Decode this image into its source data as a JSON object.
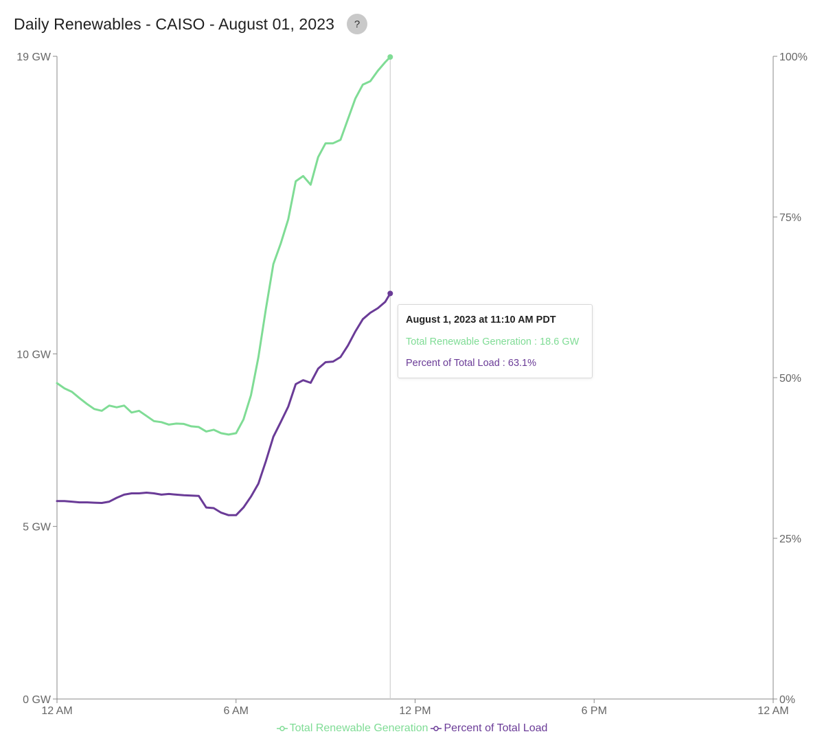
{
  "header": {
    "title": "Daily Renewables - CAISO - August 01, 2023",
    "help_label": "?"
  },
  "colors": {
    "renewable": "#7fdc95",
    "percent": "#6a3b97",
    "axis": "#888888",
    "crosshair": "#cfcfcf"
  },
  "tooltip": {
    "title": "August 1, 2023 at 11:10 AM PDT",
    "renewable_label": "Total Renewable Generation",
    "renewable_sep": " : ",
    "renewable_value": "18.6 GW",
    "percent_label": "Percent of Total Load",
    "percent_sep": " : ",
    "percent_value": "63.1%"
  },
  "legend": [
    {
      "label": "Total Renewable Generation",
      "series": "renewable"
    },
    {
      "label": "Percent of Total Load",
      "series": "percent"
    }
  ],
  "chart_data": {
    "type": "line",
    "title": "Daily Renewables - CAISO - August 01, 2023",
    "x_unit": "hours since 12 AM",
    "xlim": [
      0,
      24
    ],
    "x_ticks": [
      {
        "value": 0,
        "label": "12 AM"
      },
      {
        "value": 6,
        "label": "6 AM"
      },
      {
        "value": 12,
        "label": "12 PM"
      },
      {
        "value": 18,
        "label": "6 PM"
      },
      {
        "value": 24,
        "label": "12 AM"
      }
    ],
    "y_left": {
      "unit": "GW",
      "lim": [
        0,
        18.62
      ],
      "ticks": [
        {
          "value": 0,
          "label": "0 GW"
        },
        {
          "value": 5,
          "label": "5 GW"
        },
        {
          "value": 10,
          "label": "10 GW"
        },
        {
          "value": 18.62,
          "label": "19 GW"
        }
      ]
    },
    "y_right": {
      "unit": "%",
      "lim": [
        0,
        100
      ],
      "ticks": [
        {
          "value": 0,
          "label": "0%"
        },
        {
          "value": 25,
          "label": "25%"
        },
        {
          "value": 50,
          "label": "50%"
        },
        {
          "value": 75,
          "label": "75%"
        },
        {
          "value": 100,
          "label": "100%"
        }
      ]
    },
    "cursor_x": 11.1667,
    "grid": false,
    "legend_position": "bottom-center",
    "series": [
      {
        "name": "Total Renewable Generation",
        "key": "renewable",
        "axis": "left",
        "unit": "GW",
        "x": [
          0,
          0.25,
          0.5,
          0.75,
          1,
          1.25,
          1.5,
          1.75,
          2,
          2.25,
          2.5,
          2.75,
          3,
          3.25,
          3.5,
          3.75,
          4,
          4.25,
          4.5,
          4.75,
          5,
          5.25,
          5.5,
          5.75,
          6,
          6.25,
          6.5,
          6.75,
          7,
          7.25,
          7.5,
          7.75,
          8,
          8.25,
          8.5,
          8.75,
          9,
          9.25,
          9.5,
          9.75,
          10,
          10.25,
          10.5,
          10.75,
          11,
          11.1667
        ],
        "values": [
          9.15,
          9.0,
          8.9,
          8.72,
          8.55,
          8.4,
          8.35,
          8.5,
          8.45,
          8.5,
          8.3,
          8.35,
          8.2,
          8.05,
          8.02,
          7.95,
          7.98,
          7.97,
          7.9,
          7.88,
          7.75,
          7.8,
          7.7,
          7.66,
          7.7,
          8.1,
          8.8,
          9.9,
          11.3,
          12.6,
          13.2,
          13.9,
          15.0,
          15.15,
          14.9,
          15.7,
          16.1,
          16.1,
          16.2,
          16.8,
          17.4,
          17.8,
          17.9,
          18.2,
          18.45,
          18.6
        ]
      },
      {
        "name": "Percent of Total Load",
        "key": "percent",
        "axis": "right",
        "unit": "%",
        "x": [
          0,
          0.25,
          0.5,
          0.75,
          1,
          1.25,
          1.5,
          1.75,
          2,
          2.25,
          2.5,
          2.75,
          3,
          3.25,
          3.5,
          3.75,
          4,
          4.25,
          4.5,
          4.75,
          5,
          5.25,
          5.5,
          5.75,
          6,
          6.25,
          6.5,
          6.75,
          7,
          7.25,
          7.5,
          7.75,
          8,
          8.25,
          8.5,
          8.75,
          9,
          9.25,
          9.5,
          9.75,
          10,
          10.25,
          10.5,
          10.75,
          11,
          11.1667
        ],
        "values": [
          30.8,
          30.8,
          30.7,
          30.6,
          30.6,
          30.55,
          30.5,
          30.7,
          31.3,
          31.8,
          32.0,
          32.0,
          32.1,
          32.0,
          31.8,
          31.9,
          31.8,
          31.7,
          31.65,
          31.6,
          29.8,
          29.7,
          29.0,
          28.6,
          28.6,
          29.8,
          31.5,
          33.5,
          37.0,
          40.8,
          43.1,
          45.5,
          49.0,
          49.6,
          49.2,
          51.4,
          52.4,
          52.5,
          53.2,
          55.0,
          57.2,
          59.1,
          60.1,
          60.8,
          61.8,
          63.1
        ]
      }
    ]
  }
}
